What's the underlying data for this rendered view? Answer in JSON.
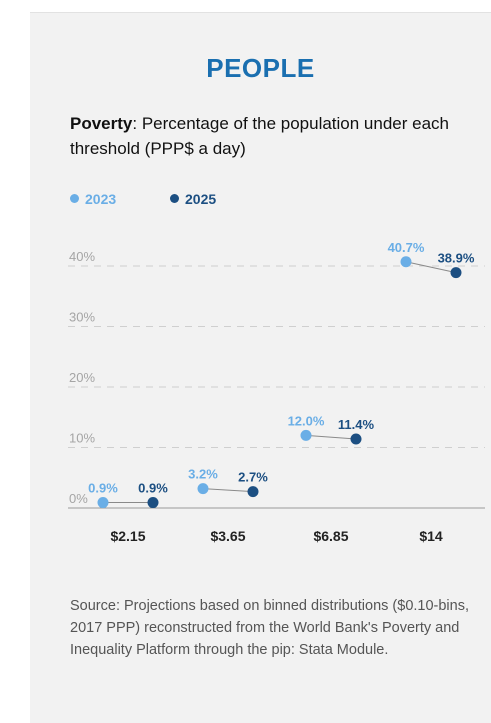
{
  "header": {
    "title": "PEOPLE"
  },
  "subtitle": {
    "bold": "Poverty",
    "rest": ": Percentage of the population under each threshold (PPP$ a day)"
  },
  "colors": {
    "series_2023": "#6aaee6",
    "series_2025": "#1c4f82",
    "title": "#1a6fb0"
  },
  "chart_data": {
    "type": "scatter",
    "title": "",
    "xlabel": "",
    "ylabel": "",
    "categories": [
      "$2.15",
      "$3.65",
      "$6.85",
      "$14"
    ],
    "y_ticks": [
      "0%",
      "10%",
      "20%",
      "30%",
      "40%"
    ],
    "ylim": [
      0,
      40
    ],
    "grid": true,
    "legend_position": "top-left",
    "series": [
      {
        "name": "2023",
        "values": [
          0.9,
          3.2,
          12.0,
          40.7
        ],
        "labels": [
          "0.9%",
          "3.2%",
          "12.0%",
          "40.7%"
        ]
      },
      {
        "name": "2025",
        "values": [
          0.9,
          2.7,
          11.4,
          38.9
        ],
        "labels": [
          "0.9%",
          "2.7%",
          "11.4%",
          "38.9%"
        ]
      }
    ]
  },
  "source": "Source: Projections based on binned distributions ($0.10-bins, 2017 PPP) reconstructed from the World Bank's Poverty and Inequality Platform through the pip: Stata Module."
}
